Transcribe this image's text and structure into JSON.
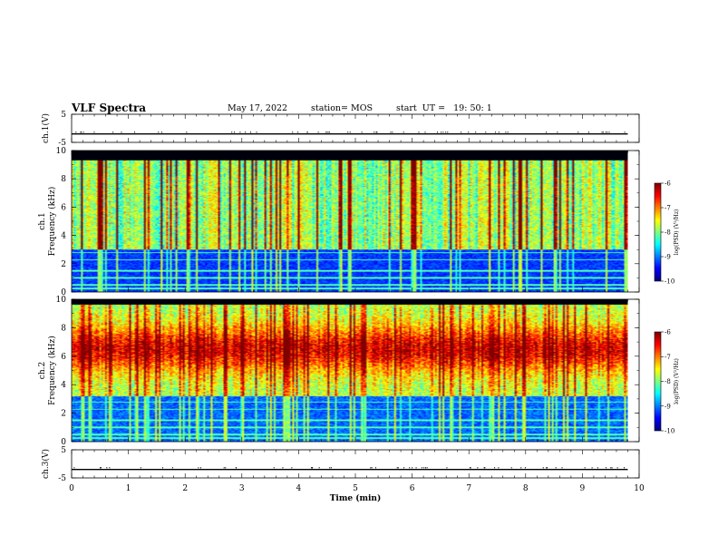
{
  "header": {
    "title": "VLF Spectra",
    "date": "May 17, 2022",
    "station": "station= MOS",
    "start": "start  UT =   19: 50: 1"
  },
  "chart_data": [
    {
      "type": "line",
      "ylabel": "ch.1(V)",
      "ylim": [
        -5,
        5
      ],
      "yticks": [
        "5",
        "-5"
      ],
      "xlim": [
        0,
        10
      ],
      "series": [
        {
          "values_description_free": true,
          "x": [
            0,
            9.8
          ],
          "y": [
            -2,
            -2
          ]
        }
      ]
    },
    {
      "type": "heatmap",
      "ylabel": "ch.1",
      "ylabel2": "Frequency (kHz)",
      "ylim": [
        0,
        10
      ],
      "yticks": [
        "0",
        "2",
        "4",
        "6",
        "8",
        "10"
      ],
      "xlim": [
        0,
        10
      ],
      "data_xmax": 9.8,
      "colorbar": {
        "label": "log(PSD) (V²/Hz)",
        "range": [
          -10,
          -6
        ],
        "ticks": [
          "-6",
          "-7",
          "-8",
          "-9",
          "-10"
        ]
      }
    },
    {
      "type": "heatmap",
      "ylabel": "ch.2",
      "ylabel2": "Frequency (kHz)",
      "ylim": [
        0,
        10
      ],
      "yticks": [
        "0",
        "2",
        "4",
        "6",
        "8",
        "10"
      ],
      "xlim": [
        0,
        10
      ],
      "data_xmax": 9.8,
      "colorbar": {
        "label": "log(PSD) (V²/Hz)",
        "range": [
          -10,
          -6
        ],
        "ticks": [
          "-6",
          "-7",
          "-8",
          "-9",
          "-10"
        ]
      }
    },
    {
      "type": "line",
      "ylabel": "ch.3(V)",
      "ylim": [
        -5,
        5
      ],
      "yticks": [
        "5",
        "-5"
      ],
      "xlim": [
        0,
        10
      ],
      "xlabel": "Time  (min)",
      "xticks": [
        "0",
        "1",
        "2",
        "3",
        "4",
        "5",
        "6",
        "7",
        "8",
        "9",
        "10"
      ],
      "series": [
        {
          "x": [
            0,
            9.8
          ],
          "y": [
            -2,
            -2
          ]
        }
      ]
    }
  ]
}
